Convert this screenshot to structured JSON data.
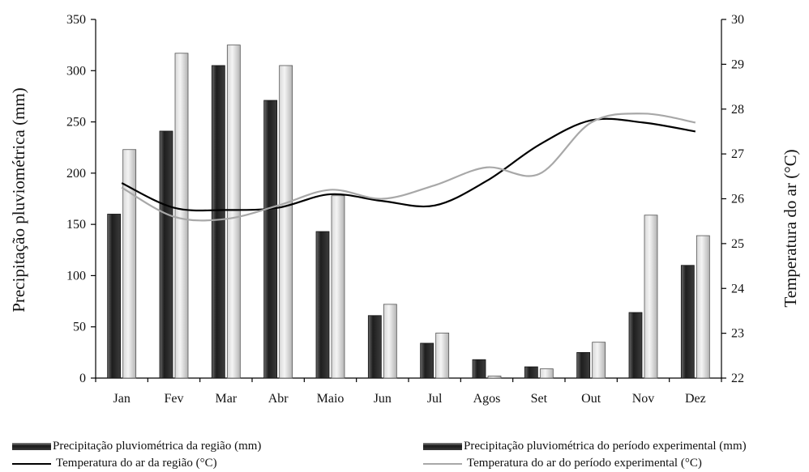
{
  "chart_data": {
    "type": "bar",
    "categories": [
      "Jan",
      "Fev",
      "Mar",
      "Abr",
      "Maio",
      "Jun",
      "Jul",
      "Agos",
      "Set",
      "Out",
      "Nov",
      "Dez"
    ],
    "ylabel": "Precipitação pluviométrica (mm)",
    "y2label": "Temperatura do ar (°C)",
    "ylim": [
      0,
      350
    ],
    "y2lim": [
      22,
      30
    ],
    "yticks": [
      "0",
      "50",
      "100",
      "150",
      "200",
      "250",
      "300",
      "350"
    ],
    "y2ticks": [
      "22",
      "23",
      "24",
      "25",
      "26",
      "27",
      "28",
      "29",
      "30"
    ],
    "series": [
      {
        "name": "Precipitação pluviométrica da região (mm)",
        "kind": "bar",
        "color": "#3a3a3a",
        "values": [
          160,
          241,
          305,
          271,
          143,
          61,
          34,
          18,
          11,
          25,
          64,
          110
        ]
      },
      {
        "name": "Precipitação pluviométrica do período experimental (mm)",
        "kind": "bar",
        "color": "#c8c8c8",
        "values": [
          223,
          317,
          325,
          305,
          178,
          72,
          44,
          2,
          9,
          35,
          159,
          139
        ]
      },
      {
        "name": "Temperatura do ar da região (°C)",
        "kind": "line",
        "axis": "right",
        "color": "#000000",
        "values": [
          26.35,
          25.8,
          25.75,
          25.8,
          26.1,
          25.95,
          25.85,
          26.4,
          27.2,
          27.75,
          27.7,
          27.5
        ]
      },
      {
        "name": "Temperatura do ar do período experimental (°C)",
        "kind": "line",
        "axis": "right",
        "color": "#a8a8a8",
        "values": [
          26.25,
          25.6,
          25.55,
          25.85,
          26.2,
          26.0,
          26.3,
          26.7,
          26.55,
          27.7,
          27.9,
          27.7
        ]
      }
    ],
    "legend_position": "bottom"
  }
}
